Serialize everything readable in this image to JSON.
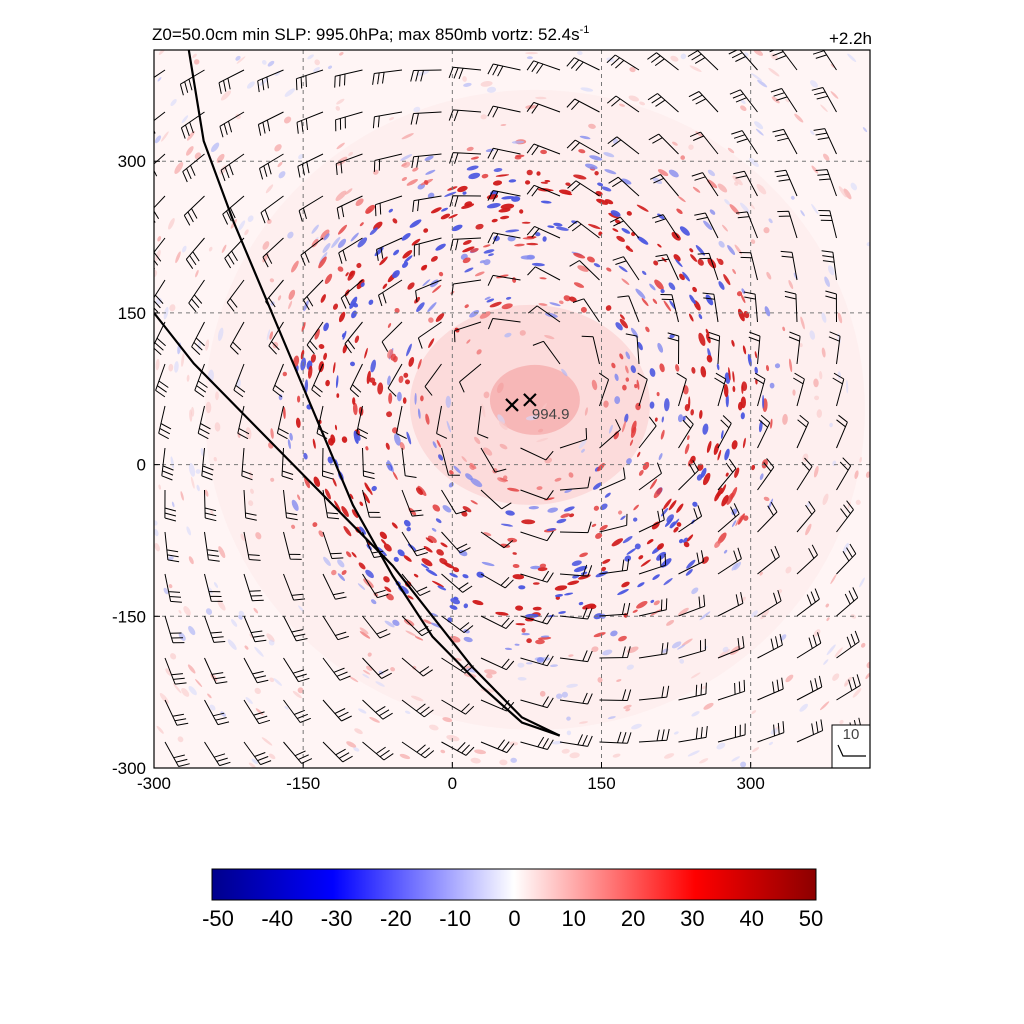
{
  "chart_data": {
    "type": "heatmap",
    "title": "Z0=50.0cm  min SLP: 995.0hPa; max 850mb vortz:  52.4s",
    "title_superscript": "-1",
    "time_label": "+2.2h",
    "xlim": [
      -300,
      420
    ],
    "ylim": [
      -300,
      410
    ],
    "x_ticks": [
      {
        "value": -300,
        "label": "-300"
      },
      {
        "value": -150,
        "label": "-150"
      },
      {
        "value": 0,
        "label": "0"
      },
      {
        "value": 150,
        "label": "150"
      },
      {
        "value": 300,
        "label": "300"
      }
    ],
    "y_ticks": [
      {
        "value": -300,
        "label": "-300"
      },
      {
        "value": -150,
        "label": "-150"
      },
      {
        "value": 0,
        "label": "0"
      },
      {
        "value": 150,
        "label": "150"
      },
      {
        "value": 300,
        "label": "300"
      }
    ],
    "grid": true,
    "field": "850mb vorticity",
    "colorbar": {
      "range": [
        -50,
        50
      ],
      "colormap": [
        "#00008c",
        "#0000ff",
        "#ffffff",
        "#ff0000",
        "#8c0000"
      ],
      "ticks": [
        {
          "value": -50,
          "label": "-50"
        },
        {
          "value": -40,
          "label": "-40"
        },
        {
          "value": -30,
          "label": "-30"
        },
        {
          "value": -20,
          "label": "-20"
        },
        {
          "value": -10,
          "label": "-10"
        },
        {
          "value": 0,
          "label": "0"
        },
        {
          "value": 10,
          "label": "10"
        },
        {
          "value": 20,
          "label": "20"
        },
        {
          "value": 30,
          "label": "30"
        },
        {
          "value": 40,
          "label": "40"
        },
        {
          "value": 50,
          "label": "50"
        }
      ]
    },
    "markers": [
      {
        "x": 60,
        "y": 59
      },
      {
        "x": 78,
        "y": 64,
        "label": "994.9"
      }
    ],
    "boundary_lines": [
      [
        [
          -265,
          410
        ],
        [
          -250,
          320
        ],
        [
          -220,
          240
        ],
        [
          -190,
          170
        ],
        [
          -160,
          100
        ],
        [
          -130,
          30
        ],
        [
          -100,
          -40
        ],
        [
          -60,
          -110
        ],
        [
          -20,
          -170
        ],
        [
          30,
          -220
        ],
        [
          70,
          -255
        ],
        [
          108,
          -268
        ]
      ],
      [
        [
          -300,
          150
        ],
        [
          -260,
          100
        ],
        [
          -210,
          50
        ],
        [
          -160,
          0
        ],
        [
          -110,
          -50
        ],
        [
          -60,
          -100
        ],
        [
          -20,
          -150
        ],
        [
          20,
          -200
        ],
        [
          70,
          -250
        ],
        [
          108,
          -268
        ]
      ]
    ],
    "wind_key": {
      "label": "10"
    }
  }
}
